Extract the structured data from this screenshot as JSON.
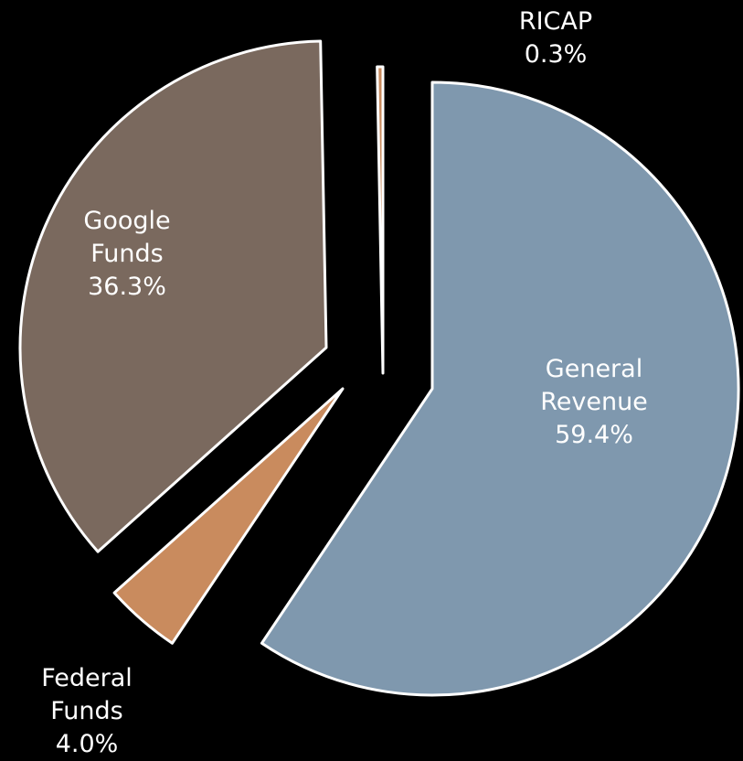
{
  "chart_data": {
    "type": "pie",
    "title": "",
    "legend": "none",
    "slices": [
      {
        "name": "General Revenue",
        "lines": [
          "General",
          "Revenue"
        ],
        "value": 59.4,
        "label": "59.4%",
        "color": "#7F98AE",
        "text_color": "#FFFFFF"
      },
      {
        "name": "Federal Funds",
        "lines": [
          "Federal",
          "Funds"
        ],
        "value": 4.0,
        "label": "4.0%",
        "color": "#C98B5E",
        "text_color": "#FFFFFF"
      },
      {
        "name": "Google Funds",
        "lines": [
          "Google",
          "Funds"
        ],
        "value": 36.3,
        "label": "36.3%",
        "color": "#7A695E",
        "text_color": "#FFFFFF"
      },
      {
        "name": "RICAP",
        "lines": [
          "RICAP"
        ],
        "value": 0.3,
        "label": "0.3%",
        "color": "#C98B5E",
        "text_color": "#FFFFFF"
      }
    ],
    "colors": {
      "background": "#000000",
      "slice_border": "#FFFFFF"
    }
  }
}
